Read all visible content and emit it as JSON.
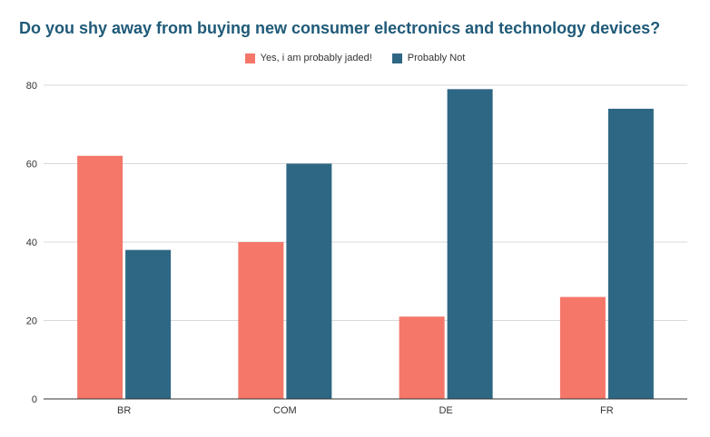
{
  "chart_data": {
    "type": "bar",
    "title": "Do you shy away from buying new consumer electronics and technology devices?",
    "categories": [
      "BR",
      "COM",
      "DE",
      "FR"
    ],
    "series": [
      {
        "name": "Yes, i am probably jaded!",
        "color": "#f4776a",
        "values": [
          62,
          40,
          21,
          26
        ]
      },
      {
        "name": "Probably Not",
        "color": "#2e6784",
        "values": [
          38,
          60,
          79,
          74
        ]
      }
    ],
    "xlabel": "",
    "ylabel": "",
    "ylim": [
      0,
      80
    ],
    "yticks": [
      "0",
      "20",
      "40",
      "60",
      "80"
    ],
    "grid": true,
    "legend_position": "top-center"
  }
}
